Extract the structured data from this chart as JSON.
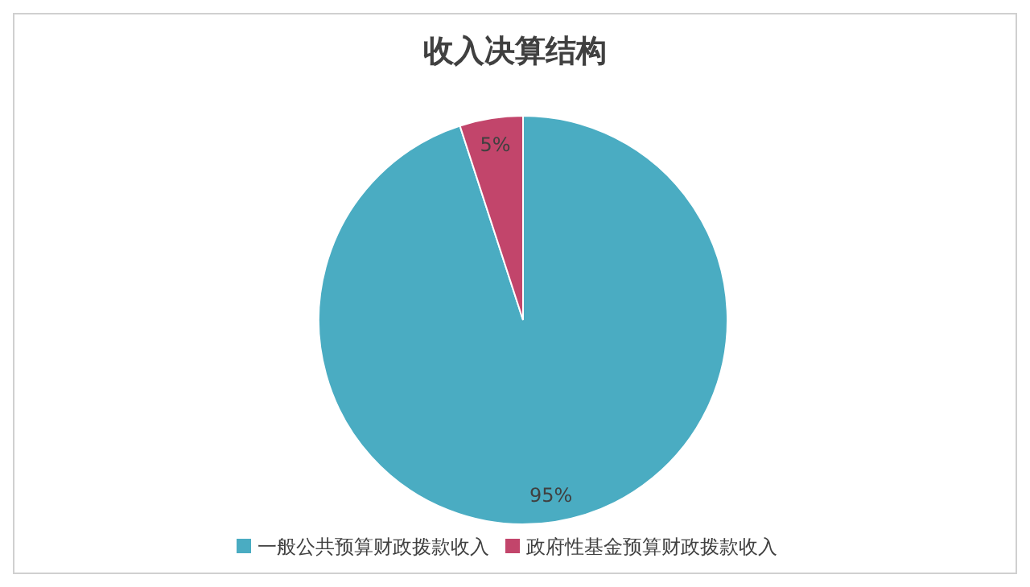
{
  "chart_data": {
    "type": "pie",
    "title": "收入决算结构",
    "categories": [
      "一般公共预算财政拨款收入",
      "政府性基金预算财政拨款收入"
    ],
    "values": [
      95,
      5
    ],
    "colors": [
      "#4aacc2",
      "#c2456b"
    ],
    "value_labels": [
      "95%",
      "5%"
    ],
    "legend": "bottom"
  }
}
